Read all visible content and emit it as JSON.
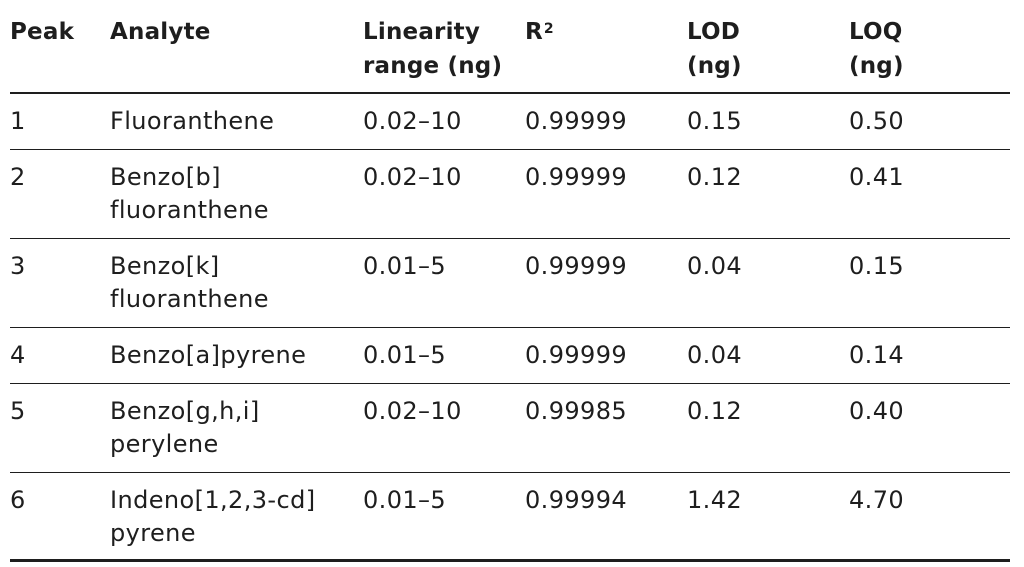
{
  "table": {
    "headers": {
      "peak": "Peak",
      "analyte": "Analyte",
      "linearity_line1": "Linearity",
      "linearity_line2": "range (ng)",
      "r2_base": "R",
      "r2_sup": "2",
      "lod_line1": "LOD",
      "lod_line2": "(ng)",
      "loq_line1": "LOQ",
      "loq_line2": "(ng)"
    },
    "rows": [
      {
        "peak": "1",
        "analyte_line1": "Fluoranthene",
        "analyte_line2": "",
        "linearity": "0.02–10",
        "r2": "0.99999",
        "lod": "0.15",
        "loq": "0.50"
      },
      {
        "peak": "2",
        "analyte_line1": "Benzo[b]",
        "analyte_line2": "fluoranthene",
        "linearity": "0.02–10",
        "r2": "0.99999",
        "lod": "0.12",
        "loq": "0.41"
      },
      {
        "peak": "3",
        "analyte_line1": "Benzo[k]",
        "analyte_line2": "fluoranthene",
        "linearity": "0.01–5",
        "r2": "0.99999",
        "lod": "0.04",
        "loq": "0.15"
      },
      {
        "peak": "4",
        "analyte_line1": "Benzo[a]pyrene",
        "analyte_line2": "",
        "linearity": "0.01–5",
        "r2": "0.99999",
        "lod": "0.04",
        "loq": "0.14"
      },
      {
        "peak": "5",
        "analyte_line1": "Benzo[g,h,i]",
        "analyte_line2": "perylene",
        "linearity": "0.02–10",
        "r2": "0.99985",
        "lod": "0.12",
        "loq": "0.40"
      },
      {
        "peak": "6",
        "analyte_line1": "Indeno[1,2,3-cd]",
        "analyte_line2": "pyrene",
        "linearity": "0.01–5",
        "r2": "0.99994",
        "lod": "1.42",
        "loq": "4.70"
      }
    ]
  }
}
